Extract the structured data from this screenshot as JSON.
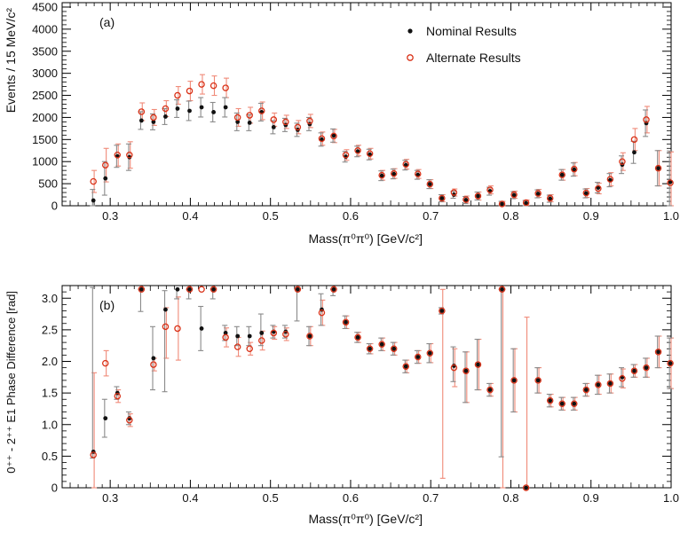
{
  "colors": {
    "nominal": "#111111",
    "alternate": "#d93218",
    "nominal_err": "#8a8a8a",
    "alternate_err": "#f08a78"
  },
  "chart_data": [
    {
      "type": "scatter",
      "panel_label": "(a)",
      "xlabel": "Mass(π⁰π⁰) [GeV/c²]",
      "ylabel": "Events / 15 MeV/c²",
      "xlim": [
        0.24,
        1.0
      ],
      "ylim": [
        0,
        4600
      ],
      "x_ticks": [
        0.3,
        0.4,
        0.5,
        0.6,
        0.7,
        0.8,
        0.9,
        1.0
      ],
      "x_tick_labels": [
        "0.3",
        "0.4",
        "0.5",
        "0.6",
        "0.7",
        "0.8",
        "0.9",
        "1.0"
      ],
      "y_ticks": [
        0,
        500,
        1000,
        1500,
        2000,
        2500,
        3000,
        3500,
        4000,
        4500
      ],
      "y_tick_labels": [
        "0",
        "500",
        "1000",
        "1500",
        "2000",
        "2500",
        "3000",
        "3500",
        "4000",
        "4500"
      ],
      "grid": false,
      "legend_position": "top-right",
      "legend": [
        "Nominal Results",
        "Alternate Results"
      ],
      "x": [
        0.279,
        0.294,
        0.309,
        0.324,
        0.339,
        0.354,
        0.369,
        0.384,
        0.399,
        0.414,
        0.429,
        0.444,
        0.459,
        0.474,
        0.489,
        0.504,
        0.519,
        0.534,
        0.549,
        0.564,
        0.579,
        0.594,
        0.609,
        0.624,
        0.639,
        0.654,
        0.669,
        0.684,
        0.699,
        0.714,
        0.729,
        0.744,
        0.759,
        0.774,
        0.789,
        0.804,
        0.819,
        0.834,
        0.849,
        0.864,
        0.879,
        0.894,
        0.909,
        0.924,
        0.939,
        0.954,
        0.969,
        0.984,
        0.999
      ],
      "series": [
        {
          "name": "Nominal Results",
          "values": [
            120,
            620,
            1120,
            1100,
            1930,
            1900,
            2020,
            2200,
            2150,
            2230,
            2120,
            2230,
            1900,
            1880,
            2120,
            1780,
            1830,
            1720,
            1850,
            1500,
            1590,
            1110,
            1230,
            1160,
            680,
            720,
            920,
            700,
            490,
            170,
            250,
            130,
            220,
            330,
            40,
            240,
            60,
            270,
            160,
            700,
            820,
            280,
            410,
            580,
            930,
            1210,
            1870,
            850,
            540
          ],
          "errors": [
            250,
            380,
            250,
            300,
            200,
            180,
            180,
            200,
            220,
            220,
            220,
            220,
            200,
            180,
            200,
            150,
            150,
            150,
            150,
            150,
            150,
            120,
            120,
            120,
            110,
            110,
            110,
            100,
            100,
            80,
            80,
            80,
            90,
            90,
            60,
            80,
            60,
            90,
            80,
            120,
            150,
            100,
            120,
            150,
            200,
            250,
            300,
            400,
            700
          ]
        },
        {
          "name": "Alternate Results",
          "values": [
            550,
            920,
            1150,
            1150,
            2130,
            2000,
            2200,
            2500,
            2600,
            2750,
            2720,
            2670,
            2000,
            2050,
            2150,
            1950,
            1900,
            1780,
            1920,
            1520,
            1580,
            1150,
            1250,
            1180,
            690,
            730,
            940,
            720,
            490,
            170,
            300,
            140,
            220,
            360,
            40,
            250,
            70,
            280,
            170,
            700,
            830,
            290,
            390,
            600,
            1000,
            1500,
            1950,
            850,
            520
          ]
        }
      ]
    },
    {
      "type": "scatter",
      "panel_label": "(b)",
      "xlabel": "Mass(π⁰π⁰) [GeV/c²]",
      "ylabel": "0⁺⁺ - 2⁺⁺ E1 Phase Difference [rad]",
      "xlim": [
        0.24,
        1.0
      ],
      "ylim": [
        0,
        3.2
      ],
      "x_ticks": [
        0.3,
        0.4,
        0.5,
        0.6,
        0.7,
        0.8,
        0.9,
        1.0
      ],
      "x_tick_labels": [
        "0.3",
        "0.4",
        "0.5",
        "0.6",
        "0.7",
        "0.8",
        "0.9",
        "1.0"
      ],
      "y_ticks": [
        0,
        0.5,
        1.0,
        1.5,
        2.0,
        2.5,
        3.0
      ],
      "y_tick_labels": [
        "0",
        "0.5",
        "1.0",
        "1.5",
        "2.0",
        "2.5",
        "3.0"
      ],
      "grid": false,
      "x": [
        0.279,
        0.294,
        0.309,
        0.324,
        0.339,
        0.354,
        0.369,
        0.384,
        0.399,
        0.414,
        0.429,
        0.444,
        0.459,
        0.474,
        0.489,
        0.504,
        0.519,
        0.534,
        0.549,
        0.564,
        0.579,
        0.594,
        0.609,
        0.624,
        0.639,
        0.654,
        0.669,
        0.684,
        0.699,
        0.714,
        0.729,
        0.744,
        0.759,
        0.774,
        0.789,
        0.804,
        0.819,
        0.834,
        0.849,
        0.864,
        0.879,
        0.894,
        0.909,
        0.924,
        0.939,
        0.954,
        0.969,
        0.984,
        0.999
      ],
      "series": [
        {
          "name": "Nominal Results",
          "values": [
            0.57,
            1.1,
            1.5,
            1.1,
            3.14,
            2.05,
            2.82,
            3.14,
            3.14,
            2.52,
            3.14,
            2.45,
            2.4,
            2.4,
            2.45,
            2.47,
            2.47,
            3.14,
            2.4,
            2.82,
            3.14,
            2.62,
            2.38,
            2.2,
            2.27,
            2.2,
            1.92,
            2.07,
            2.13,
            2.8,
            1.93,
            1.85,
            1.95,
            1.55,
            3.14,
            1.7,
            0.0,
            1.7,
            1.38,
            1.33,
            1.33,
            1.55,
            1.63,
            1.65,
            1.75,
            1.85,
            1.9,
            2.15,
            1.97
          ],
          "err_lo": [
            0.1,
            0.3,
            0.1,
            0.1,
            0.35,
            0.5,
            1.3,
            0.15,
            0.15,
            0.35,
            0.15,
            0.12,
            0.15,
            0.15,
            0.2,
            0.1,
            0.1,
            0.5,
            0.15,
            0.25,
            0.1,
            0.1,
            0.08,
            0.08,
            0.1,
            0.1,
            0.1,
            0.1,
            0.15,
            0.05,
            0.25,
            0.5,
            0.4,
            0.1,
            2.65,
            0.5,
            0.0,
            0.2,
            0.1,
            0.1,
            0.1,
            0.1,
            0.15,
            0.15,
            0.15,
            0.1,
            0.15,
            0.25,
            0.4
          ],
          "err_hi": [
            2.6,
            0.3,
            0.1,
            0.1,
            0.0,
            0.5,
            0.3,
            0.0,
            0.0,
            0.35,
            0.0,
            0.12,
            0.15,
            0.15,
            0.3,
            0.1,
            0.1,
            0.0,
            0.15,
            0.25,
            0.0,
            0.1,
            0.08,
            0.08,
            0.1,
            0.1,
            0.1,
            0.1,
            0.15,
            0.05,
            0.3,
            0.3,
            0.4,
            0.1,
            0.0,
            0.5,
            0.0,
            0.2,
            0.1,
            0.1,
            0.1,
            0.1,
            0.15,
            0.15,
            0.15,
            0.1,
            0.15,
            0.25,
            0.4
          ]
        },
        {
          "name": "Alternate Results",
          "values": [
            0.52,
            1.97,
            1.45,
            1.07,
            3.14,
            1.95,
            2.55,
            2.52,
            3.14,
            3.14,
            3.14,
            2.38,
            2.23,
            2.2,
            2.33,
            2.45,
            2.43,
            3.14,
            2.4,
            2.77,
            3.14,
            2.62,
            2.38,
            2.2,
            2.27,
            2.2,
            1.92,
            2.07,
            2.13,
            2.8,
            1.9,
            1.85,
            1.95,
            1.55,
            3.14,
            1.7,
            0.0,
            1.7,
            1.38,
            1.33,
            1.33,
            1.55,
            1.63,
            1.65,
            1.73,
            1.85,
            1.9,
            2.15,
            1.97
          ],
          "err_lo": [
            0.52,
            0.2,
            0.1,
            0.1,
            0.0,
            0.1,
            0.5,
            0.5,
            0.0,
            0.0,
            0.0,
            0.15,
            0.15,
            0.1,
            0.15,
            0.1,
            0.1,
            0.0,
            0.15,
            0.2,
            0.0,
            0.1,
            0.08,
            0.08,
            0.1,
            0.1,
            0.1,
            0.1,
            0.15,
            2.65,
            0.3,
            0.5,
            0.4,
            0.1,
            3.14,
            0.5,
            0.0,
            0.2,
            0.1,
            0.1,
            0.1,
            0.1,
            0.15,
            0.15,
            0.15,
            0.1,
            0.15,
            0.25,
            0.4
          ],
          "err_hi": [
            1.3,
            0.2,
            0.1,
            0.1,
            0.0,
            0.1,
            0.3,
            0.5,
            0.0,
            0.0,
            0.0,
            0.15,
            0.15,
            0.1,
            0.15,
            0.1,
            0.1,
            0.0,
            0.15,
            0.2,
            0.0,
            0.1,
            0.08,
            0.08,
            0.1,
            0.1,
            0.1,
            0.1,
            0.15,
            0.34,
            0.3,
            0.3,
            0.4,
            0.1,
            0.0,
            0.5,
            2.7,
            0.2,
            0.1,
            0.1,
            0.1,
            0.1,
            0.15,
            0.15,
            0.15,
            0.1,
            0.15,
            0.25,
            0.4
          ]
        }
      ]
    }
  ]
}
